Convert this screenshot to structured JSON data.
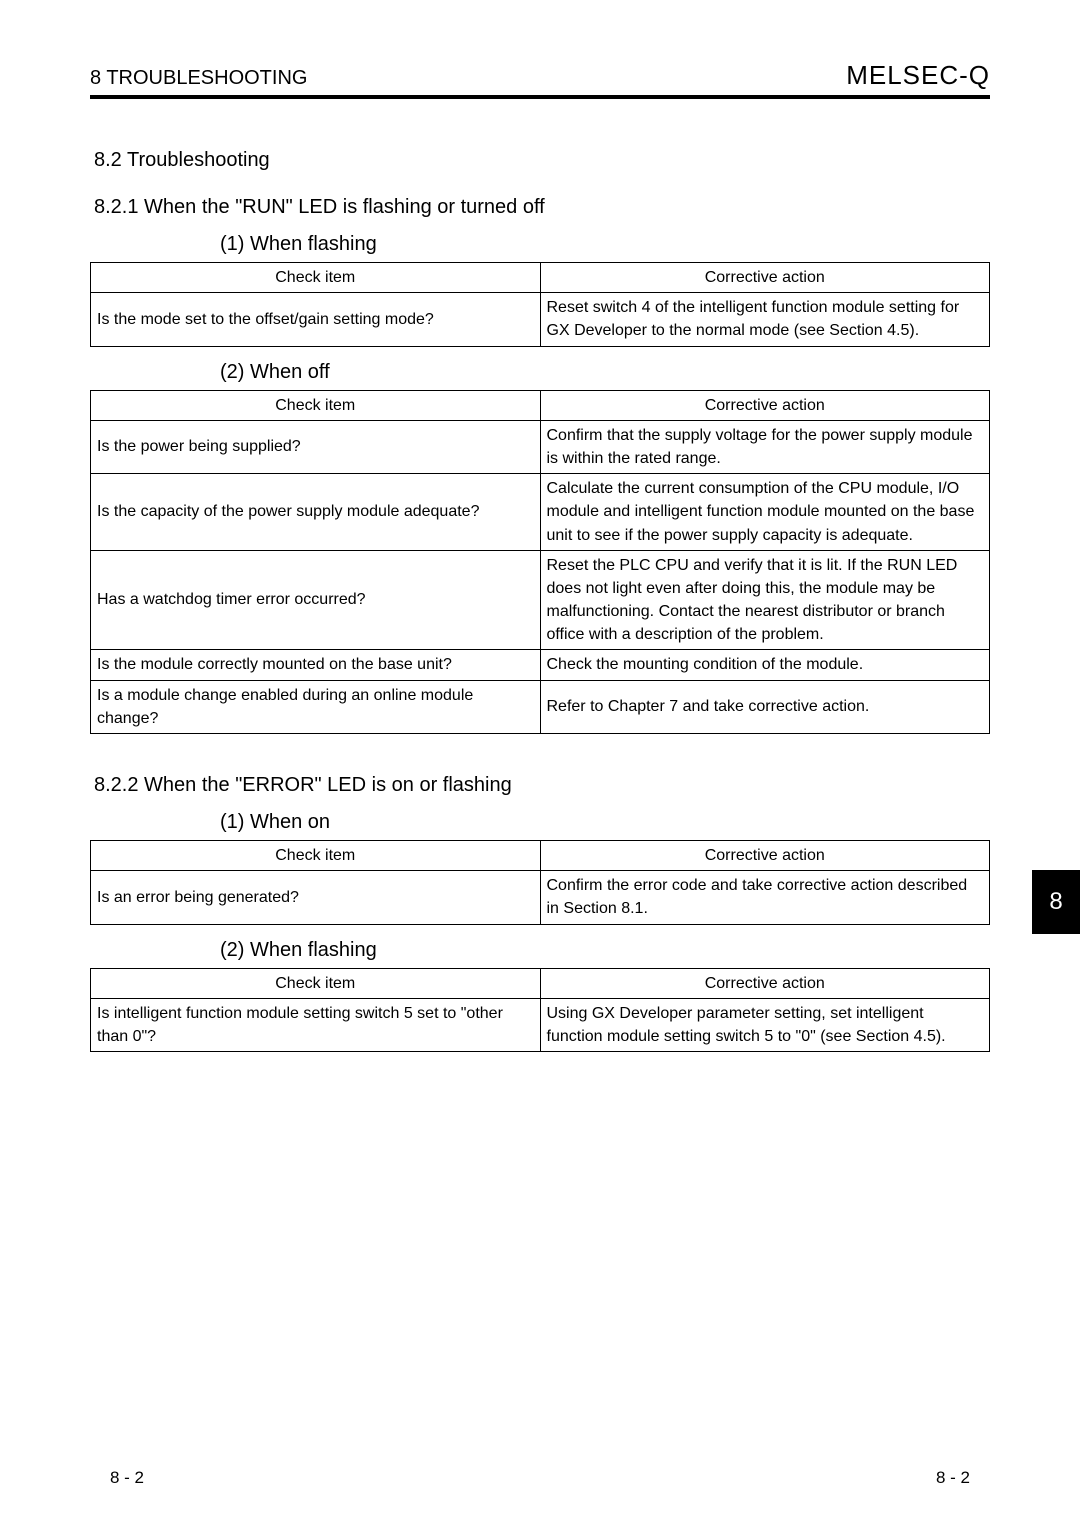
{
  "header": {
    "chapter": "8   TROUBLESHOOTING",
    "brand": "MELSEC-Q"
  },
  "section": {
    "title": "8.2 Troubleshooting"
  },
  "sub1": {
    "title": "8.2.1 When the \"RUN\" LED is flashing or turned off",
    "item1": {
      "heading": "(1)   When flashing",
      "th_check": "Check item",
      "th_action": "Corrective action",
      "rows": [
        {
          "check": "Is the mode set to the offset/gain setting mode?",
          "action": "Reset switch 4 of the intelligent function module setting for GX Developer to the normal mode (see Section 4.5)."
        }
      ]
    },
    "item2": {
      "heading": "(2)   When off",
      "th_check": "Check item",
      "th_action": "Corrective action",
      "rows": [
        {
          "check": "Is the power being supplied?",
          "action": "Confirm that the supply voltage for the power supply module is within the rated range."
        },
        {
          "check": "Is the capacity of the power supply module adequate?",
          "action": "Calculate the current consumption of the CPU module, I/O module and intelligent function module mounted on the base unit to see if the power supply capacity is adequate."
        },
        {
          "check": "Has a watchdog timer error occurred?",
          "action": "Reset the PLC CPU and verify that it is lit. If the RUN LED does not light even after doing this, the module may be malfunctioning. Contact the nearest distributor or branch office with a description of the problem."
        },
        {
          "check": "Is the module correctly mounted on the base unit?",
          "action": "Check the mounting condition of the module."
        },
        {
          "check": "Is a module change enabled during an online module change?",
          "action": "Refer to Chapter 7 and take corrective action."
        }
      ]
    }
  },
  "sub2": {
    "title": "8.2.2 When the \"ERROR\" LED is on or flashing",
    "item1": {
      "heading": "(1)   When on",
      "th_check": "Check item",
      "th_action": "Corrective action",
      "rows": [
        {
          "check": "Is an error being generated?",
          "action": "Confirm the error code and take corrective action described in Section 8.1."
        }
      ]
    },
    "item2": {
      "heading": "(2)   When flashing",
      "th_check": "Check item",
      "th_action": "Corrective action",
      "rows": [
        {
          "check": "Is intelligent function module setting switch 5 set to \"other than 0\"?",
          "action": "Using GX Developer parameter setting, set intelligent function module setting switch 5 to \"0\" (see Section 4.5)."
        }
      ]
    }
  },
  "sidetab": "8",
  "footer": {
    "left": "8 - 2",
    "right": "8 - 2"
  }
}
